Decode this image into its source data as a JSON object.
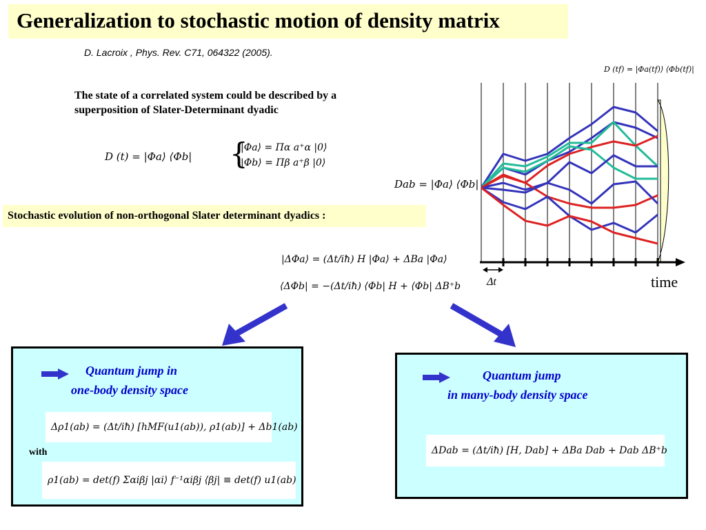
{
  "slide": {
    "title": "Generalization to stochastic motion of density matrix",
    "reference": "D. Lacroix , Phys. Rev. C71, 064322  (2005).",
    "final_density": "D (tf) = |Φa(tf)⟩ ⟨Φb(tf)|",
    "intro_text": "The state of a correlated system could be described by a superposition of Slater-Determinant dyadic",
    "eq_density": "D (t) = |Φa⟩ ⟨Φb|",
    "eq_phia": "|Φa⟩  = Πα a⁺α |0⟩",
    "eq_phib": "|Φb⟩  = Πβ a⁺β |0⟩",
    "stochastic_heading": "Stochastic evolution of non-orthogonal Slater determinant dyadics :",
    "eq_dphia": "|ΔΦa⟩  = (Δt/iħ) H |Φa⟩ + ΔBa |Φa⟩",
    "eq_dphib": "⟨ΔΦb|  = −(Δt/iħ) ⟨Φb| H + ⟨Φb| ΔB⁺b",
    "dab_label": "Dab = |Φa⟩ ⟨Φb|",
    "dt_label": "Δt",
    "time_label": "time"
  },
  "left_card": {
    "jump_line1": "Quantum jump in",
    "jump_line2": "one-body density space",
    "eq_drho": "Δρ1(ab) = (Δt/iħ) [hMF(u1(ab)), ρ1(ab)] + Δb1(ab)",
    "with_label": "with",
    "eq_rho": "ρ1(ab) =  det(f) Σαiβj |αi⟩ f⁻¹αiβj ⟨βj| ≡ det(f) u1(ab)"
  },
  "right_card": {
    "jump_line1": "Quantum jump",
    "jump_line2": "in many-body density space",
    "eq_ddab": "ΔDab = (Δt/iħ) [H, Dab] + ΔBa Dab + Dab ΔB⁺b"
  },
  "colors": {
    "title_bg": "#ffffcc",
    "card_bg": "#ccffff",
    "blue_path": "#3333bb",
    "red_path": "#dd2222",
    "teal_path": "#22bb99",
    "arrow": "#3333cc"
  }
}
